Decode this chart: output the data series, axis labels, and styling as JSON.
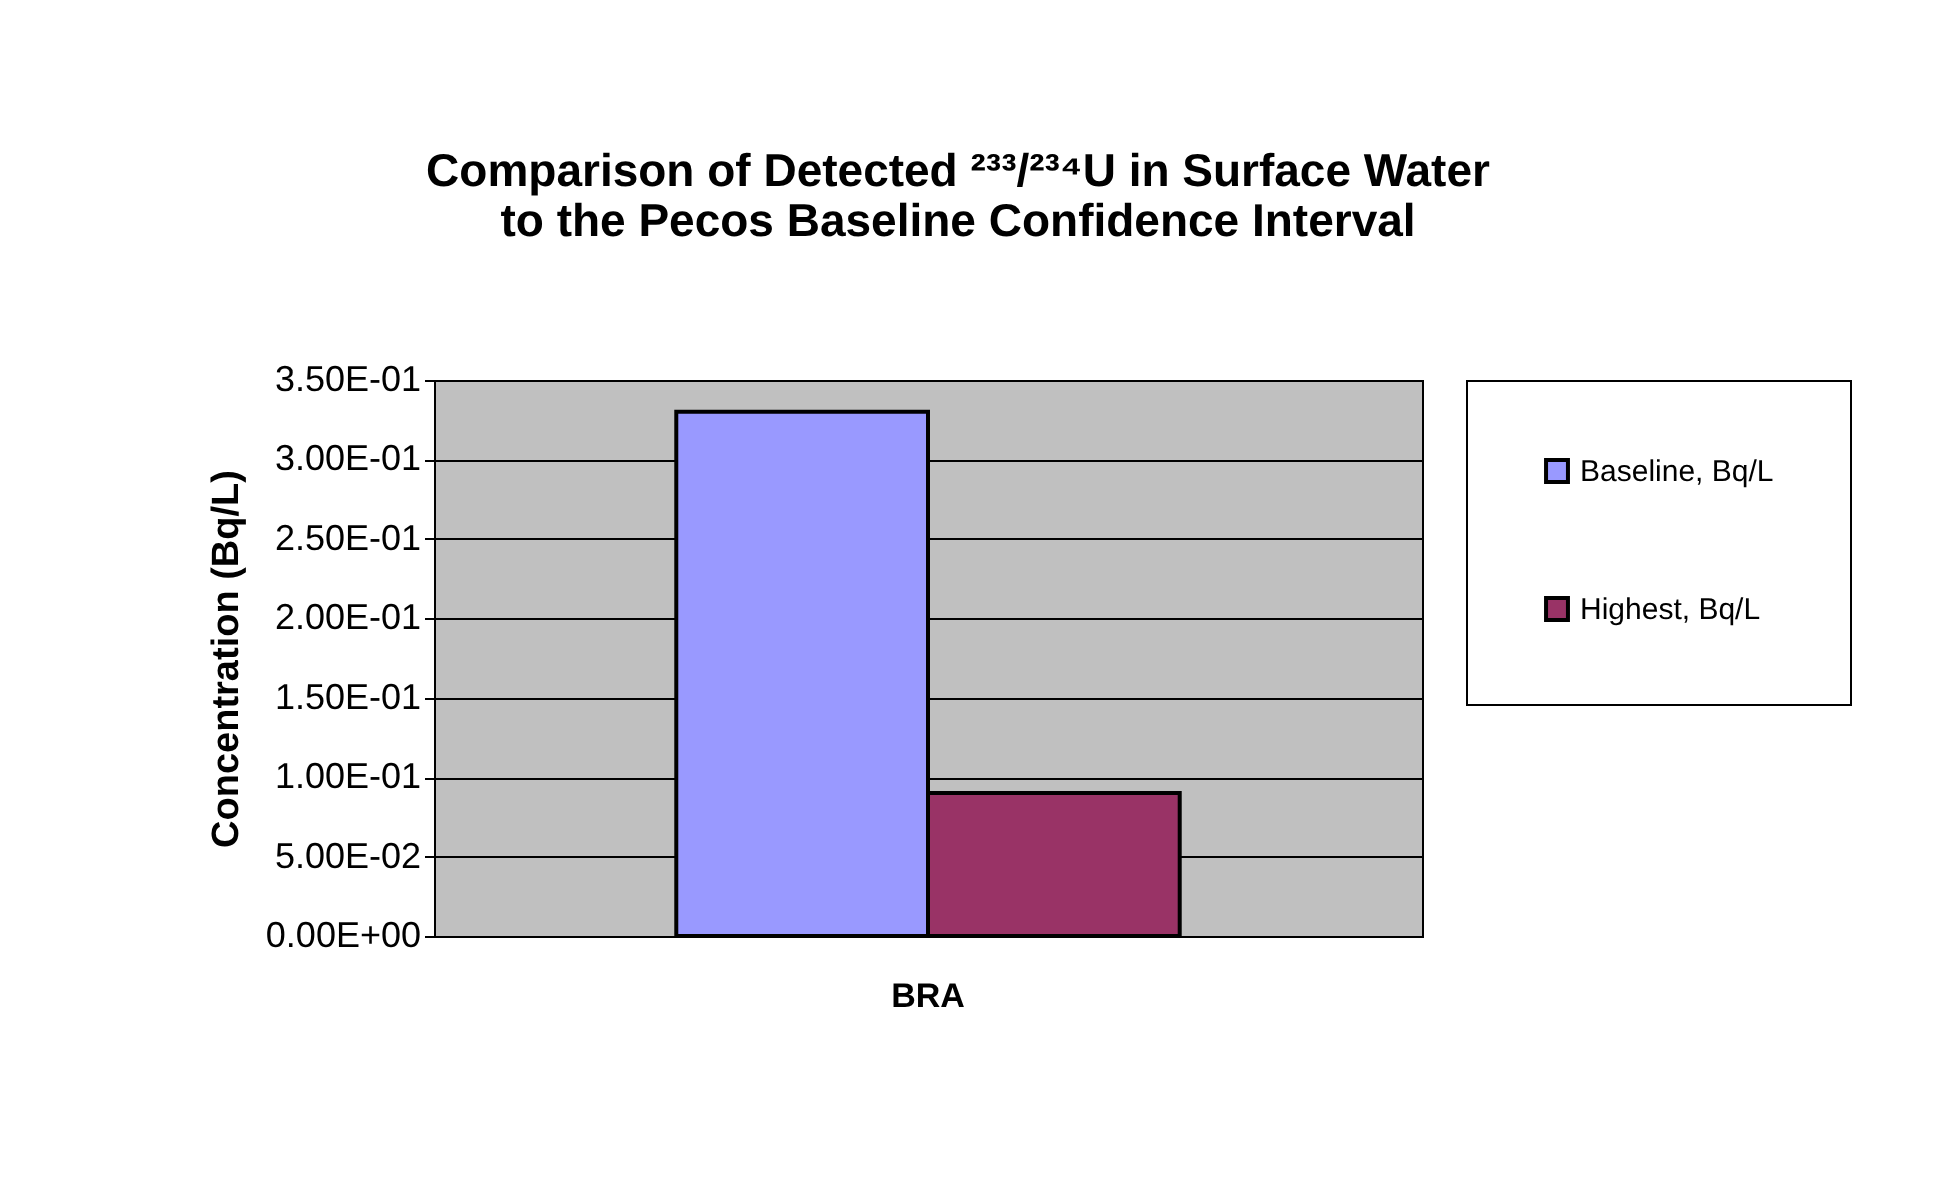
{
  "chart_data": {
    "type": "bar",
    "title": "Comparison of Detected ²³³/²³⁴U in Surface Water\nto the Pecos Baseline Confidence Interval",
    "ylabel": "Concentration (Bq/L)",
    "categories": [
      "BRA"
    ],
    "series": [
      {
        "name": "Baseline, Bq/L",
        "color": "#9999ff",
        "values": [
          0.33
        ]
      },
      {
        "name": "Highest, Bq/L",
        "color": "#993366",
        "values": [
          0.09
        ]
      }
    ],
    "ylim": [
      0,
      0.35
    ],
    "yticks": [
      {
        "value": 0,
        "label": "0.00E+00"
      },
      {
        "value": 0.05,
        "label": "5.00E-02"
      },
      {
        "value": 0.1,
        "label": "1.00E-01"
      },
      {
        "value": 0.15,
        "label": "1.50E-01"
      },
      {
        "value": 0.2,
        "label": "2.00E-01"
      },
      {
        "value": 0.25,
        "label": "2.50E-01"
      },
      {
        "value": 0.3,
        "label": "3.00E-01"
      },
      {
        "value": 0.35,
        "label": "3.50E-01"
      }
    ],
    "grid": "y",
    "legend": "right"
  }
}
